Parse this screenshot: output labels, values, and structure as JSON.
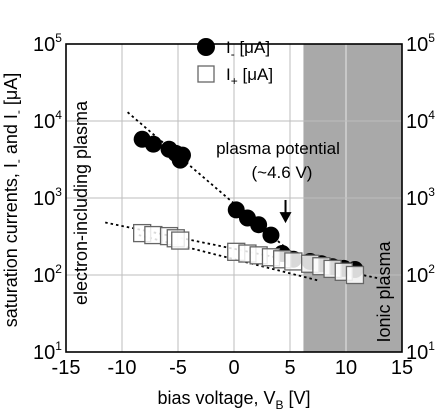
{
  "chart_data": {
    "type": "scatter",
    "title": "",
    "xlabel": "bias voltage, V",
    "xlabel_subscript": "B",
    "xlabel_unit": " [V]",
    "ylabel": "saturation currents, I",
    "ylabel_sub_minus": "-",
    "ylabel_mid": " and I",
    "ylabel_sub_plus": "-",
    "ylabel_unit": " [μA]",
    "xlim": [
      -15,
      15
    ],
    "ylim": [
      10,
      100000
    ],
    "y_scale": "log",
    "grid": true,
    "x_ticks": [
      "-15",
      "-10",
      "-5",
      "0",
      "5",
      "10",
      "15"
    ],
    "y_ticks": [
      {
        "base": "10",
        "exp": "1"
      },
      {
        "base": "10",
        "exp": "2"
      },
      {
        "base": "10",
        "exp": "3"
      },
      {
        "base": "10",
        "exp": "4"
      },
      {
        "base": "10",
        "exp": "5"
      }
    ],
    "legend_position": "top-center",
    "shaded_region_x": [
      6.2,
      15
    ],
    "shaded_color": "#a9a9a9",
    "series": [
      {
        "name": "I",
        "name_sub": "-",
        "name_unit": " [μA]",
        "marker": "filled-circle",
        "points": [
          [
            -8.2,
            5800
          ],
          [
            -7.2,
            5000
          ],
          [
            -5.8,
            4300
          ],
          [
            -5.2,
            3800
          ],
          [
            -4.8,
            3100
          ],
          [
            -4.6,
            3600
          ],
          [
            0.2,
            700
          ],
          [
            1.2,
            550
          ],
          [
            2.2,
            450
          ],
          [
            3.3,
            330
          ],
          [
            4.3,
            190
          ],
          [
            5.3,
            160
          ],
          [
            6.8,
            150
          ],
          [
            7.8,
            140
          ],
          [
            8.8,
            128
          ],
          [
            9.8,
            122
          ],
          [
            10.8,
            118
          ]
        ]
      },
      {
        "name": "I",
        "name_sub": "+",
        "name_unit": " [μA]",
        "marker": "open-square",
        "points": [
          [
            -8.2,
            350
          ],
          [
            -7.2,
            330
          ],
          [
            -5.8,
            320
          ],
          [
            -5.2,
            300
          ],
          [
            -4.8,
            280
          ],
          [
            0.2,
            200
          ],
          [
            1.2,
            190
          ],
          [
            2.2,
            180
          ],
          [
            3.3,
            170
          ],
          [
            4.3,
            160
          ],
          [
            5.3,
            150
          ],
          [
            6.8,
            140
          ],
          [
            7.8,
            130
          ],
          [
            8.8,
            120
          ],
          [
            9.8,
            110
          ],
          [
            10.8,
            100
          ]
        ]
      }
    ],
    "fit_lines": [
      {
        "x": [
          -9.5,
          5.5
        ],
        "y": [
          13000,
          175
        ]
      },
      {
        "x": [
          -11.5,
          13
        ],
        "y": [
          480,
          90
        ]
      },
      {
        "x": [
          -8.5,
          7.5
        ],
        "y": [
          330,
          85
        ]
      }
    ],
    "annotations": {
      "plasma_potential_line1": "plasma potential",
      "plasma_potential_line2": "(~4.6 V)",
      "arrow_at": [
        4.6,
        330
      ],
      "left_region": "electron-including plasma",
      "right_region": "Ionic plasma"
    }
  }
}
